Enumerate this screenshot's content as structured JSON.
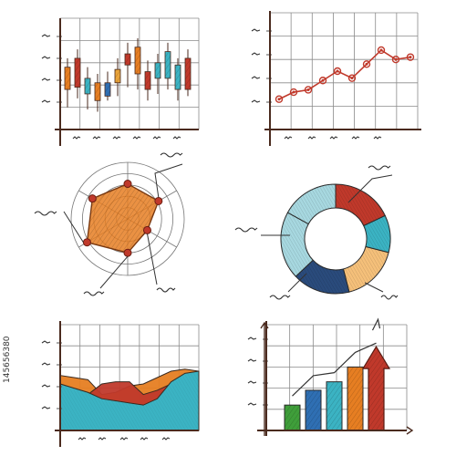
{
  "watermark": {
    "side_text": "145656380"
  },
  "colors": {
    "red": "#c0392b",
    "orange": "#e67e22",
    "yellow": "#e9a43a",
    "teal": "#3bb3c3",
    "light_blue": "#a7d8e0",
    "navy": "#2a4b7c",
    "peach": "#f5c07a",
    "blue": "#2f6fb3",
    "green": "#3f9e3a",
    "dark_orange": "#d9662a",
    "grid": "#8a8a8a",
    "axis": "#4a2a1e",
    "light_orange": "#f4a640"
  },
  "chart_data": [
    {
      "type": "candlestick",
      "position": "top-left",
      "ylim": [
        0,
        10
      ],
      "candles": [
        {
          "low": 2.0,
          "open": 5.6,
          "close": 3.6,
          "high": 6.4,
          "color": "#e67e22"
        },
        {
          "low": 2.8,
          "open": 3.8,
          "close": 6.4,
          "high": 7.2,
          "color": "#c0392b"
        },
        {
          "low": 1.8,
          "open": 4.6,
          "close": 3.2,
          "high": 5.6,
          "color": "#3bb3c3"
        },
        {
          "low": 1.6,
          "open": 4.2,
          "close": 2.6,
          "high": 5.0,
          "color": "#e67e22"
        },
        {
          "low": 2.6,
          "open": 4.2,
          "close": 3.0,
          "high": 5.2,
          "color": "#2f6fb3"
        },
        {
          "low": 3.0,
          "open": 4.2,
          "close": 5.4,
          "high": 6.4,
          "color": "#e9a43a"
        },
        {
          "low": 3.8,
          "open": 5.8,
          "close": 6.8,
          "high": 7.8,
          "color": "#c0392b"
        },
        {
          "low": 3.6,
          "open": 7.4,
          "close": 5.0,
          "high": 8.2,
          "color": "#e67e22"
        },
        {
          "low": 2.6,
          "open": 5.2,
          "close": 3.6,
          "high": 6.2,
          "color": "#c0392b"
        },
        {
          "low": 3.2,
          "open": 6.0,
          "close": 4.6,
          "high": 6.8,
          "color": "#3bb3c3"
        },
        {
          "low": 3.6,
          "open": 7.0,
          "close": 4.6,
          "high": 7.8,
          "color": "#3bb3c3"
        },
        {
          "low": 2.6,
          "open": 5.8,
          "close": 3.6,
          "high": 6.4,
          "color": "#3bb3c3"
        },
        {
          "low": 3.0,
          "open": 6.4,
          "close": 3.6,
          "high": 7.2,
          "color": "#c0392b"
        }
      ]
    },
    {
      "type": "line",
      "position": "top-right",
      "ylim": [
        0,
        10
      ],
      "x": [
        1,
        2,
        3,
        4,
        5,
        6,
        7,
        8,
        9,
        10
      ],
      "series": [
        {
          "values": [
            2.6,
            3.2,
            3.4,
            4.2,
            5.0,
            4.4,
            5.6,
            6.8,
            6.0,
            6.2
          ],
          "color": "#c0392b"
        }
      ]
    },
    {
      "type": "radar",
      "position": "middle-left",
      "axes": 6,
      "rmax": 10,
      "values": [
        6.2,
        6.3,
        4.0,
        6.0,
        8.3,
        7.2
      ],
      "fill": "#e67e22",
      "stroke": "#7a3a12",
      "callouts": [
        "top-right",
        "left",
        "bottom-left",
        "bottom"
      ]
    },
    {
      "type": "pie",
      "subtype": "donut",
      "position": "middle-right",
      "slices": [
        {
          "value": 18,
          "color": "#c0392b"
        },
        {
          "value": 11,
          "color": "#3bb3c3"
        },
        {
          "value": 17,
          "color": "#f5c07a"
        },
        {
          "value": 17,
          "color": "#2a4b7c"
        },
        {
          "value": 20,
          "color": "#a7d8e0"
        },
        {
          "value": 17,
          "color": "#a7d8e0"
        }
      ],
      "callouts": [
        "top-right",
        "left",
        "bottom-left"
      ]
    },
    {
      "type": "area",
      "position": "bottom-left",
      "ylim": [
        0,
        10
      ],
      "x": [
        0,
        1,
        2,
        3,
        4,
        5,
        6,
        7,
        8,
        9,
        10
      ],
      "series": [
        {
          "color": "#3bb3c3",
          "values": [
            4.4,
            4.0,
            3.6,
            3.0,
            2.8,
            2.6,
            2.4,
            3.0,
            4.6,
            5.4,
            5.6
          ]
        },
        {
          "color": "#e67e22",
          "values": [
            5.2,
            5.0,
            4.8,
            3.4,
            3.6,
            4.2,
            4.4,
            5.0,
            5.6,
            5.8,
            5.6
          ]
        },
        {
          "color": "#c0392b",
          "values": [
            4.2,
            3.6,
            3.4,
            4.4,
            4.6,
            4.6,
            3.4,
            3.8,
            4.4,
            4.8,
            5.0
          ]
        }
      ]
    },
    {
      "type": "bar",
      "position": "bottom-right",
      "ylim": [
        0,
        10
      ],
      "values": [
        2.4,
        3.8,
        4.6,
        6.0,
        7.4
      ],
      "colors": [
        "#3f9e3a",
        "#2f6fb3",
        "#3bb3c3",
        "#e67e22",
        "#c0392b"
      ],
      "arrow_trend": true
    }
  ]
}
